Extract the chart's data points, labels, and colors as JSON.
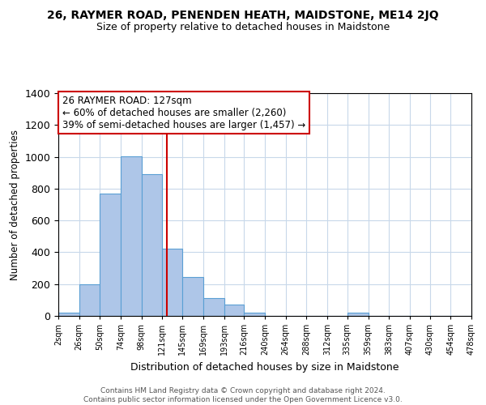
{
  "title": "26, RAYMER ROAD, PENENDEN HEATH, MAIDSTONE, ME14 2JQ",
  "subtitle": "Size of property relative to detached houses in Maidstone",
  "xlabel": "Distribution of detached houses by size in Maidstone",
  "ylabel": "Number of detached properties",
  "bar_color": "#aec6e8",
  "bar_edge_color": "#5a9fd4",
  "background_color": "#ffffff",
  "grid_color": "#c8d8ea",
  "annotation_box_color": "#cc0000",
  "vline_color": "#cc0000",
  "vline_x": 127,
  "annotation_title": "26 RAYMER ROAD: 127sqm",
  "annotation_line1": "← 60% of detached houses are smaller (2,260)",
  "annotation_line2": "39% of semi-detached houses are larger (1,457) →",
  "bin_edges": [
    2,
    26,
    50,
    74,
    98,
    121,
    145,
    169,
    193,
    216,
    240,
    264,
    288,
    312,
    335,
    359,
    383,
    407,
    430,
    454,
    478
  ],
  "bin_heights": [
    20,
    200,
    770,
    1005,
    890,
    425,
    245,
    110,
    70,
    20,
    0,
    0,
    0,
    0,
    20,
    0,
    0,
    0,
    0,
    0
  ],
  "tick_labels": [
    "2sqm",
    "26sqm",
    "50sqm",
    "74sqm",
    "98sqm",
    "121sqm",
    "145sqm",
    "169sqm",
    "193sqm",
    "216sqm",
    "240sqm",
    "264sqm",
    "288sqm",
    "312sqm",
    "335sqm",
    "359sqm",
    "383sqm",
    "407sqm",
    "430sqm",
    "454sqm",
    "478sqm"
  ],
  "ylim": [
    0,
    1400
  ],
  "yticks": [
    0,
    200,
    400,
    600,
    800,
    1000,
    1200,
    1400
  ],
  "footer1": "Contains HM Land Registry data © Crown copyright and database right 2024.",
  "footer2": "Contains public sector information licensed under the Open Government Licence v3.0."
}
